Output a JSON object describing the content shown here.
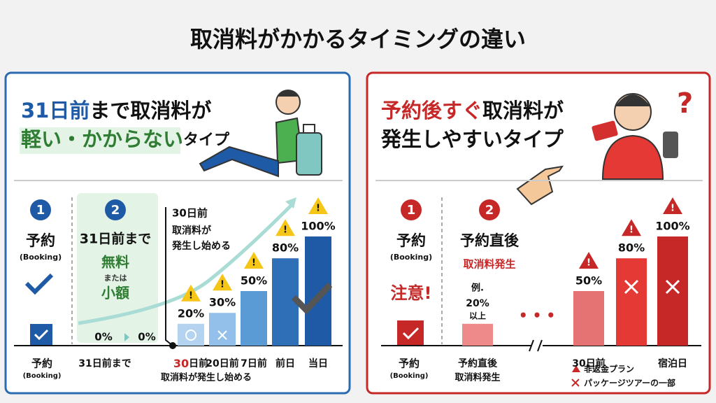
{
  "title": "取消料がかかるタイミングの違い",
  "left": {
    "heading": {
      "line1_accent": "31日前",
      "line1_rest": "まで取消料が",
      "line2_accent": "軽い・かからない",
      "line2_rest": "タイプ"
    },
    "step1": {
      "num": "1",
      "label": "予約",
      "sub": "(Booking)"
    },
    "step2": {
      "num": "2",
      "label": "31日前まで",
      "free": "無料",
      "or": "または",
      "small": "小額"
    },
    "zero_labels": [
      "0%",
      "0%"
    ],
    "callout": [
      "30日前",
      "取消料が",
      "発生し始める"
    ],
    "axis": {
      "booking": "予約",
      "booking_sub": "(Booking)",
      "before31": "31日前まで",
      "first_num": "30",
      "first_unit": "日前",
      "note": "取消料が発生し始める"
    },
    "chart": {
      "type": "bar",
      "categories": [
        null,
        "20日前",
        "7日前",
        "前日",
        "当日"
      ],
      "values": [
        20,
        30,
        50,
        80,
        100
      ],
      "value_labels": [
        "20%",
        "30%",
        "50%",
        "80%",
        "100%"
      ],
      "colors": [
        "#b3d3f0",
        "#93c0ea",
        "#5b9bd5",
        "#2f6fb8",
        "#1f5aa6"
      ]
    }
  },
  "right": {
    "heading": {
      "line1_accent": "予約後すぐ",
      "line1_rest": "取消料が",
      "line2": "発生しやすいタイプ"
    },
    "step1": {
      "num": "1",
      "label": "予約",
      "sub": "(Booking)",
      "warning": "注意!"
    },
    "step2": {
      "num": "2",
      "label": "予約直後",
      "sub": "取消料発生"
    },
    "example_prefix": "例.",
    "example_suffix": "以上",
    "axis": {
      "booking": "予約",
      "booking_sub": "(Booking)",
      "first_sub": "取消料発生"
    },
    "legend": [
      "非返金プラン",
      "パッケージツアーの一部"
    ],
    "chart": {
      "type": "bar",
      "categories": [
        "予約直後",
        "30日前",
        null,
        "宿泊日"
      ],
      "values": [
        20,
        50,
        80,
        100
      ],
      "value_labels": [
        "20%",
        "50%",
        "80%",
        "100%"
      ],
      "colors": [
        "#ef8a8a",
        "#e57373",
        "#e53935",
        "#c62828"
      ]
    }
  }
}
